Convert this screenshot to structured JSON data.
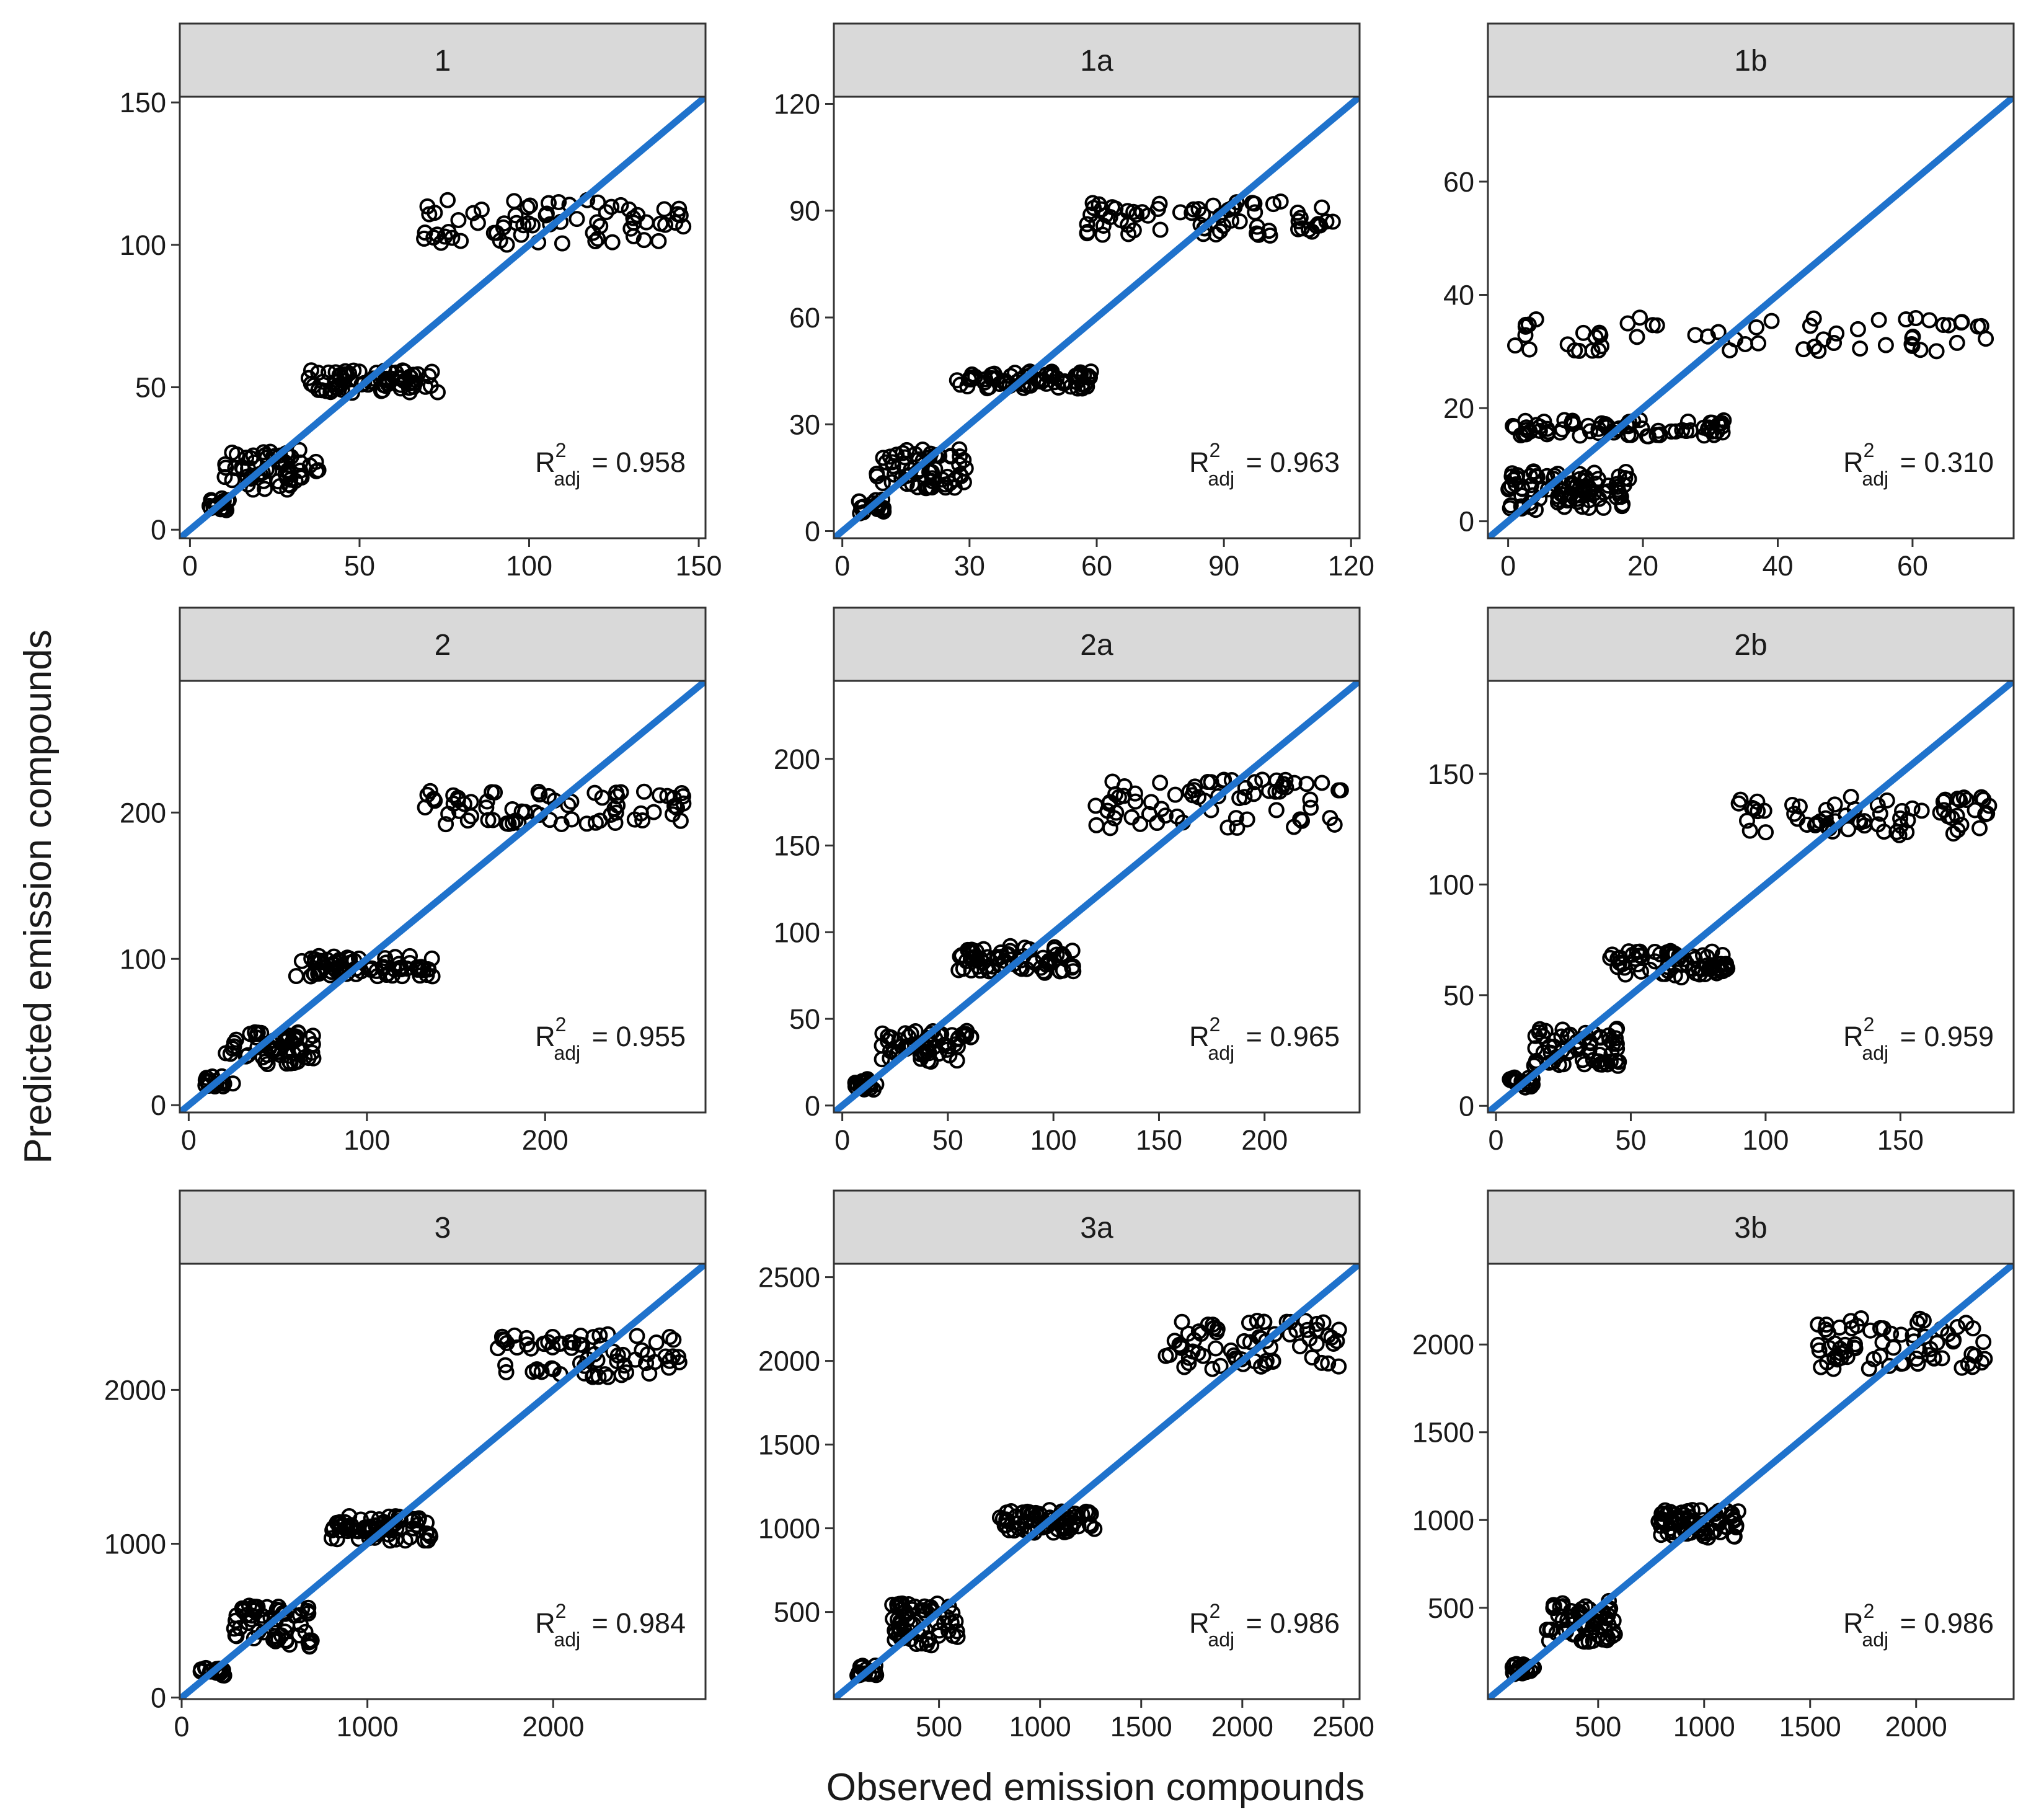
{
  "figure": {
    "xlabel": "Observed emission compounds",
    "ylabel": "Predicted emission compounds",
    "colors": {
      "fit_line": "#1f72cc",
      "point_stroke": "#000000",
      "strip_fill": "#d9d9d9",
      "panel_border": "#333333"
    }
  },
  "chart_data": [
    {
      "type": "scatter",
      "title": "1",
      "r2_label": "R",
      "r2_sup": "2",
      "r2_sub": "adj",
      "r2_value": "= 0.958",
      "xlim": [
        -3,
        152
      ],
      "ylim": [
        -3,
        152
      ],
      "xticks": [
        0,
        50,
        100,
        150
      ],
      "yticks": [
        0,
        50,
        100,
        150
      ],
      "fit_line": [
        [
          -3,
          -3
        ],
        [
          152,
          152
        ]
      ],
      "clusters": [
        {
          "x": [
            5,
            12
          ],
          "y": [
            6,
            11
          ],
          "n": 18
        },
        {
          "x": [
            10,
            38
          ],
          "y": [
            14,
            28
          ],
          "n": 60
        },
        {
          "x": [
            34,
            74
          ],
          "y": [
            48,
            56
          ],
          "n": 70
        },
        {
          "x": [
            68,
            146
          ],
          "y": [
            100,
            116
          ],
          "n": 70
        }
      ]
    },
    {
      "type": "scatter",
      "title": "1a",
      "r2_label": "R",
      "r2_sup": "2",
      "r2_sub": "adj",
      "r2_value": "= 0.963",
      "xlim": [
        -2,
        122
      ],
      "ylim": [
        -2,
        122
      ],
      "xticks": [
        0,
        30,
        60,
        90,
        120
      ],
      "yticks": [
        0,
        30,
        60,
        90,
        120
      ],
      "fit_line": [
        [
          -2,
          -2
        ],
        [
          122,
          122
        ]
      ],
      "clusters": [
        {
          "x": [
            3,
            10
          ],
          "y": [
            5,
            9
          ],
          "n": 18
        },
        {
          "x": [
            8,
            30
          ],
          "y": [
            12,
            23
          ],
          "n": 60
        },
        {
          "x": [
            27,
            59
          ],
          "y": [
            40,
            45
          ],
          "n": 70
        },
        {
          "x": [
            57,
            117
          ],
          "y": [
            83,
            93
          ],
          "n": 70
        }
      ]
    },
    {
      "type": "scatter",
      "title": "1b",
      "r2_label": "R",
      "r2_sup": "2",
      "r2_sub": "adj",
      "r2_value": "= 0.310",
      "xlim": [
        -3,
        75
      ],
      "ylim": [
        -3,
        75
      ],
      "xticks": [
        0,
        20,
        40,
        60
      ],
      "yticks": [
        0,
        20,
        40,
        60
      ],
      "fit_line": [
        [
          -3,
          -3
        ],
        [
          75,
          75
        ]
      ],
      "clusters": [
        {
          "x": [
            0,
            18
          ],
          "y": [
            2,
            9
          ],
          "n": 90
        },
        {
          "x": [
            0,
            33
          ],
          "y": [
            15,
            18
          ],
          "n": 70
        },
        {
          "x": [
            0,
            72
          ],
          "y": [
            30,
            36
          ],
          "n": 60
        }
      ]
    },
    {
      "type": "scatter",
      "title": "2",
      "r2_label": "R",
      "r2_sup": "2",
      "r2_sub": "adj",
      "r2_value": "= 0.955",
      "xlim": [
        -5,
        290
      ],
      "ylim": [
        -5,
        290
      ],
      "xticks": [
        0,
        100,
        200
      ],
      "yticks": [
        0,
        100,
        200
      ],
      "fit_line": [
        [
          -5,
          -5
        ],
        [
          290,
          290
        ]
      ],
      "clusters": [
        {
          "x": [
            8,
            25
          ],
          "y": [
            12,
            20
          ],
          "n": 18
        },
        {
          "x": [
            20,
            70
          ],
          "y": [
            28,
            52
          ],
          "n": 60
        },
        {
          "x": [
            60,
            138
          ],
          "y": [
            88,
            102
          ],
          "n": 70
        },
        {
          "x": [
            128,
            282
          ],
          "y": [
            192,
            215
          ],
          "n": 70
        }
      ]
    },
    {
      "type": "scatter",
      "title": "2a",
      "r2_label": "R",
      "r2_sup": "2",
      "r2_sub": "adj",
      "r2_value": "= 0.965",
      "xlim": [
        -4,
        245
      ],
      "ylim": [
        -4,
        245
      ],
      "xticks": [
        0,
        50,
        100,
        150,
        200
      ],
      "yticks": [
        0,
        50,
        100,
        150,
        200
      ],
      "fit_line": [
        [
          -4,
          -4
        ],
        [
          245,
          245
        ]
      ],
      "clusters": [
        {
          "x": [
            6,
            18
          ],
          "y": [
            9,
            16
          ],
          "n": 18
        },
        {
          "x": [
            18,
            62
          ],
          "y": [
            25,
            44
          ],
          "n": 60
        },
        {
          "x": [
            55,
            110
          ],
          "y": [
            76,
            92
          ],
          "n": 70
        },
        {
          "x": [
            120,
            238
          ],
          "y": [
            160,
            188
          ],
          "n": 70
        }
      ]
    },
    {
      "type": "scatter",
      "title": "2b",
      "r2_label": "R",
      "r2_sup": "2",
      "r2_sub": "adj",
      "r2_value": "= 0.959",
      "xlim": [
        -3,
        192
      ],
      "ylim": [
        -3,
        192
      ],
      "xticks": [
        0,
        50,
        100,
        150
      ],
      "yticks": [
        0,
        50,
        100,
        150
      ],
      "fit_line": [
        [
          -3,
          -3
        ],
        [
          192,
          192
        ]
      ],
      "clusters": [
        {
          "x": [
            5,
            14
          ],
          "y": [
            8,
            13
          ],
          "n": 18
        },
        {
          "x": [
            12,
            46
          ],
          "y": [
            18,
            35
          ],
          "n": 60
        },
        {
          "x": [
            42,
            86
          ],
          "y": [
            58,
            70
          ],
          "n": 70
        },
        {
          "x": [
            87,
            185
          ],
          "y": [
            122,
            140
          ],
          "n": 70
        }
      ]
    },
    {
      "type": "scatter",
      "title": "3",
      "r2_label": "R",
      "r2_sup": "2",
      "r2_sub": "adj",
      "r2_value": "= 0.984",
      "xlim": [
        -10,
        2820
      ],
      "ylim": [
        -10,
        2820
      ],
      "xticks": [
        0,
        1000,
        2000
      ],
      "yticks": [
        0,
        1000,
        2000
      ],
      "fit_line": [
        [
          -10,
          -10
        ],
        [
          2820,
          2820
        ]
      ],
      "clusters": [
        {
          "x": [
            100,
            230
          ],
          "y": [
            140,
            200
          ],
          "n": 18
        },
        {
          "x": [
            280,
            700
          ],
          "y": [
            330,
            600
          ],
          "n": 60
        },
        {
          "x": [
            800,
            1350
          ],
          "y": [
            1020,
            1180
          ],
          "n": 70
        },
        {
          "x": [
            1700,
            2700
          ],
          "y": [
            2080,
            2370
          ],
          "n": 70
        }
      ]
    },
    {
      "type": "scatter",
      "title": "3a",
      "r2_label": "R",
      "r2_sup": "2",
      "r2_sub": "adj",
      "r2_value": "= 0.986",
      "xlim": [
        -20,
        2580
      ],
      "ylim": [
        -20,
        2580
      ],
      "xticks": [
        500,
        1000,
        1500,
        2000,
        2500
      ],
      "yticks": [
        500,
        1000,
        1500,
        2000,
        2500
      ],
      "fit_line": [
        [
          -20,
          -20
        ],
        [
          2580,
          2580
        ]
      ],
      "clusters": [
        {
          "x": [
            90,
            200
          ],
          "y": [
            120,
            180
          ],
          "n": 18
        },
        {
          "x": [
            250,
            600
          ],
          "y": [
            300,
            560
          ],
          "n": 60
        },
        {
          "x": [
            800,
            1270
          ],
          "y": [
            970,
            1110
          ],
          "n": 70
        },
        {
          "x": [
            1620,
            2480
          ],
          "y": [
            1950,
            2240
          ],
          "n": 70
        }
      ]
    },
    {
      "type": "scatter",
      "title": "3b",
      "r2_label": "R",
      "r2_sup": "2",
      "r2_sub": "adj",
      "r2_value": "= 0.986",
      "xlim": [
        -20,
        2460
      ],
      "ylim": [
        -20,
        2460
      ],
      "xticks": [
        500,
        1000,
        1500,
        2000
      ],
      "yticks": [
        500,
        1000,
        1500,
        2000
      ],
      "fit_line": [
        [
          -20,
          -20
        ],
        [
          2460,
          2460
        ]
      ],
      "clusters": [
        {
          "x": [
            90,
            200
          ],
          "y": [
            120,
            180
          ],
          "n": 18
        },
        {
          "x": [
            250,
            580
          ],
          "y": [
            300,
            540
          ],
          "n": 60
        },
        {
          "x": [
            780,
            1170
          ],
          "y": [
            900,
            1060
          ],
          "n": 70
        },
        {
          "x": [
            1530,
            2330
          ],
          "y": [
            1860,
            2150
          ],
          "n": 70
        }
      ]
    }
  ]
}
